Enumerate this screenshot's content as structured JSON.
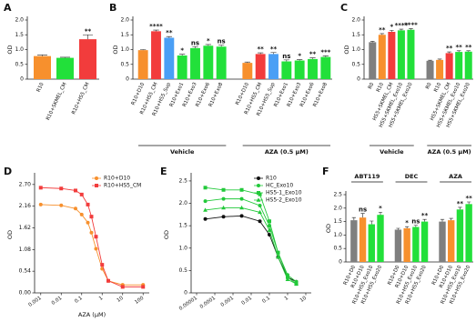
{
  "chart_data": [
    {
      "panel": "A",
      "type": "bar",
      "ylabel": "OD",
      "ylim": [
        0,
        2
      ],
      "yticks": [
        0,
        0.5,
        {
          "value": 1,
          "label": "1.0"
        },
        1.5,
        {
          "value": 2,
          "label": "2.0"
        }
      ],
      "groups": [
        {
          "categories": [
            "R10",
            "R10+SKMEL_CM",
            "R10+HS5_CM"
          ],
          "values": [
            0.78,
            0.72,
            1.35
          ],
          "errors": [
            0.04,
            0.02,
            0.15
          ],
          "colors": [
            "#f7902d",
            "#22e03a",
            "#f23c3c"
          ],
          "annotations": [
            null,
            null,
            "**"
          ]
        }
      ]
    },
    {
      "panel": "B",
      "type": "bar",
      "ylabel": "OD",
      "ylim": [
        0,
        2
      ],
      "yticks": [
        0,
        0.5,
        {
          "value": 1,
          "label": "1.0"
        },
        1.5,
        {
          "value": 2,
          "label": "2.0"
        }
      ],
      "group_label_position": "bottom",
      "groups": [
        {
          "name": "Vehicle",
          "categories": [
            "R10+D10",
            "R10+HS5_CM",
            "R10+HS5_Sup",
            "R10+Exo1",
            "R10+Exo3",
            "R10+Exo6",
            "R10+Exo8"
          ],
          "values": [
            0.98,
            1.62,
            1.4,
            0.8,
            1.05,
            1.13,
            1.1
          ],
          "errors": [
            0.02,
            0.04,
            0.04,
            0.04,
            0.05,
            0.04,
            0.05
          ],
          "colors": [
            "#f7902d",
            "#f23c3c",
            "#4a9ff5",
            "#22e03a",
            "#22e03a",
            "#22e03a",
            "#22e03a"
          ],
          "annotations": [
            null,
            "****",
            "**",
            "*",
            "ns",
            "*",
            "ns"
          ]
        },
        {
          "name": "AZA (0.5 μM)",
          "categories": [
            "R10+D10",
            "R10+HS5_CM",
            "R10+HS5_Sup",
            "R10+Exo1",
            "R10+Exo3",
            "R10+Exo6",
            "R10+Exo8"
          ],
          "values": [
            0.55,
            0.85,
            0.85,
            0.6,
            0.63,
            0.68,
            0.75
          ],
          "errors": [
            0.03,
            0.04,
            0.05,
            0.05,
            0.03,
            0.04,
            0.04
          ],
          "colors": [
            "#f7902d",
            "#f23c3c",
            "#4a9ff5",
            "#22e03a",
            "#22e03a",
            "#22e03a",
            "#22e03a"
          ],
          "annotations": [
            null,
            "**",
            "**",
            "ns",
            "*",
            "**",
            "***"
          ]
        }
      ]
    },
    {
      "panel": "C",
      "type": "bar",
      "ylabel": "OD",
      "ylim": [
        0,
        2
      ],
      "yticks": [
        0,
        0.5,
        {
          "value": 1,
          "label": "1.0"
        },
        1.5,
        {
          "value": 2,
          "label": "2.0"
        }
      ],
      "group_label_position": "bottom",
      "groups": [
        {
          "name": "Vehicle",
          "categories": [
            "R0",
            "R10",
            "HS5+SKMEL_CM",
            "HS5+SKMEL_Exo10",
            "HS5+SKMEL_Exo20"
          ],
          "values": [
            1.25,
            1.5,
            1.6,
            1.65,
            1.67
          ],
          "errors": [
            0.03,
            0.04,
            0.05,
            0.04,
            0.04
          ],
          "colors": [
            "#7f7f7f",
            "#f7902d",
            "#f23c3c",
            "#22e03a",
            "#22e03a"
          ],
          "annotations": [
            null,
            "**",
            "*",
            "****",
            "****"
          ]
        },
        {
          "name": "AZA (0.5 μM)",
          "categories": [
            "R0",
            "R10",
            "HS5+SKMEL_CM",
            "HS5+SKMEL_Exo10",
            "HS5+SKMEL_Exo20"
          ],
          "values": [
            0.62,
            0.65,
            0.88,
            0.92,
            0.93
          ],
          "errors": [
            0.02,
            0.03,
            0.04,
            0.04,
            0.03
          ],
          "colors": [
            "#7f7f7f",
            "#f7902d",
            "#f23c3c",
            "#22e03a",
            "#22e03a"
          ],
          "annotations": [
            null,
            null,
            "**",
            "**",
            "**"
          ]
        }
      ]
    },
    {
      "panel": "D",
      "type": "line",
      "ylabel": "OD",
      "xlabel": "AZA (μM)",
      "xscale": "log",
      "legend": "upper right",
      "xlim": [
        0.0005,
        200
      ],
      "xticks": [
        0.001,
        0.01,
        0.1,
        1,
        10,
        100
      ],
      "ylim": [
        0,
        2.9
      ],
      "yticks": [
        {
          "value": 0,
          "label": "0.00"
        },
        {
          "value": 0.54,
          "label": "0.54"
        },
        {
          "value": 1.08,
          "label": "1.08"
        },
        {
          "value": 1.62,
          "label": "1.62"
        },
        {
          "value": 2.16,
          "label": "2.16"
        },
        {
          "value": 2.7,
          "label": "2.70"
        }
      ],
      "x": [
        0.001,
        0.01,
        0.05,
        0.1,
        0.2,
        0.3,
        0.5,
        1,
        2,
        10,
        100
      ],
      "series": [
        {
          "name": "R10+D10",
          "color": "#f7902d",
          "marker": "circle",
          "values": [
            2.2,
            2.18,
            2.1,
            1.95,
            1.75,
            1.5,
            1.1,
            0.6,
            0.3,
            0.2,
            0.2
          ]
        },
        {
          "name": "R10+HS5_CM",
          "color": "#f23c3c",
          "marker": "square",
          "values": [
            2.62,
            2.6,
            2.55,
            2.45,
            2.2,
            1.9,
            1.4,
            0.7,
            0.3,
            0.15,
            0.15
          ]
        }
      ]
    },
    {
      "panel": "E",
      "type": "line",
      "ylabel": "OD",
      "xscale": "log",
      "legend": "upper right",
      "xlim": [
        5e-06,
        20
      ],
      "xticks": [
        1e-05,
        0.0001,
        0.001,
        0.01,
        0.1,
        1,
        10
      ],
      "ylim": [
        0,
        2.6
      ],
      "yticks": [
        0,
        0.5,
        {
          "value": 1,
          "label": "1.0"
        },
        1.5,
        {
          "value": 2,
          "label": "2.0"
        },
        2.5
      ],
      "x": [
        3e-05,
        0.0003,
        0.003,
        0.03,
        0.1,
        0.3,
        1,
        3
      ],
      "series": [
        {
          "name": "R10",
          "color": "#111111",
          "marker": "circle",
          "values": [
            1.65,
            1.7,
            1.72,
            1.6,
            1.3,
            0.8,
            0.35,
            0.25
          ]
        },
        {
          "name": "HC_Exo10",
          "color": "#22c93a",
          "marker": "circle",
          "values": [
            2.05,
            2.1,
            2.1,
            1.95,
            1.5,
            0.9,
            0.4,
            0.25
          ]
        },
        {
          "name": "HS5-1_Exo10",
          "color": "#22c93a",
          "marker": "square",
          "values": [
            2.35,
            2.3,
            2.3,
            2.2,
            1.6,
            0.9,
            0.35,
            0.2
          ]
        },
        {
          "name": "HS5-2_Exo10",
          "color": "#22c93a",
          "marker": "triangle",
          "values": [
            1.85,
            1.9,
            1.9,
            1.8,
            1.4,
            0.8,
            0.3,
            0.2
          ]
        }
      ]
    },
    {
      "panel": "F",
      "type": "bar",
      "ylabel": "OD",
      "ylim": [
        0,
        2.5
      ],
      "yticks": [
        0,
        0.5,
        {
          "value": 1,
          "label": "1.0"
        },
        1.5,
        {
          "value": 2,
          "label": "2.0"
        },
        2.5
      ],
      "group_label_position": "top",
      "groups": [
        {
          "name": "ABT119",
          "categories": [
            "R10+D0",
            "R10+D10",
            "R10+HS5_Exo10",
            "R10+HS5_Exo20"
          ],
          "values": [
            1.55,
            1.65,
            1.4,
            1.75
          ],
          "errors": [
            0.1,
            0.15,
            0.12,
            0.1
          ],
          "colors": [
            "#7f7f7f",
            "#f7902d",
            "#22e03a",
            "#22e03a"
          ],
          "annotations": [
            null,
            "ns",
            null,
            "*"
          ]
        },
        {
          "name": "DEC",
          "categories": [
            "R10+D0",
            "R10+D10",
            "R10+HS5_Exo10",
            "R10+HS5_Exo20"
          ],
          "values": [
            1.2,
            1.25,
            1.3,
            1.5
          ],
          "errors": [
            0.05,
            0.06,
            0.06,
            0.08
          ],
          "colors": [
            "#7f7f7f",
            "#f7902d",
            "#22e03a",
            "#22e03a"
          ],
          "annotations": [
            null,
            "*",
            "ns",
            "**"
          ]
        },
        {
          "name": "AZA",
          "categories": [
            "R10+D0",
            "R10+D10",
            "R10+HS5_Exo10",
            "R10+HS5_Exo20"
          ],
          "values": [
            1.5,
            1.55,
            1.95,
            2.15
          ],
          "errors": [
            0.08,
            0.07,
            0.08,
            0.08
          ],
          "colors": [
            "#7f7f7f",
            "#f7902d",
            "#22e03a",
            "#22e03a"
          ],
          "annotations": [
            null,
            null,
            "**",
            "**"
          ]
        }
      ]
    }
  ]
}
